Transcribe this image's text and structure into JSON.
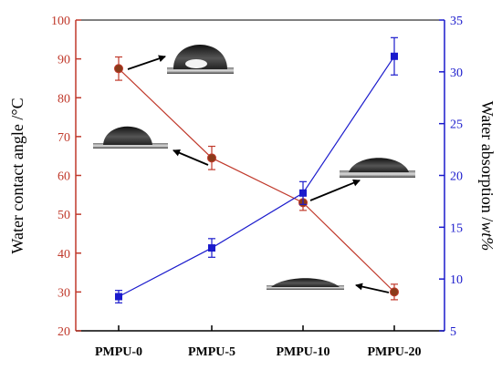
{
  "chart_data": {
    "type": "line",
    "categories": [
      "PMPU-0",
      "PMPU-5",
      "PMPU-10",
      "PMPU-20"
    ],
    "y_left": {
      "label_main": "Water contact angle /",
      "label_unit": "°C",
      "range": [
        20,
        100
      ],
      "ticks": [
        20,
        30,
        40,
        50,
        60,
        70,
        80,
        90,
        100
      ],
      "color": "#c0392b"
    },
    "y_right": {
      "label_main": "Water absorption /",
      "label_unit": "wt%",
      "range": [
        5,
        35
      ],
      "ticks": [
        5,
        10,
        15,
        20,
        25,
        30,
        35
      ],
      "color": "#1a1acc"
    },
    "series": [
      {
        "axis": "left",
        "values": [
          87.5,
          64.5,
          53.0,
          30.0
        ],
        "errors": [
          3.0,
          3.0,
          2.0,
          2.0
        ],
        "marker": "circle",
        "color": "#c0392b"
      },
      {
        "axis": "right",
        "values": [
          8.3,
          13.0,
          18.3,
          31.5
        ],
        "errors": [
          0.6,
          0.9,
          1.1,
          1.8
        ],
        "marker": "square",
        "color": "#1a1acc"
      }
    ],
    "grid": false,
    "annotations": [
      "droplet image PMPU-0",
      "droplet image PMPU-5",
      "droplet image PMPU-10",
      "droplet image PMPU-20"
    ]
  }
}
